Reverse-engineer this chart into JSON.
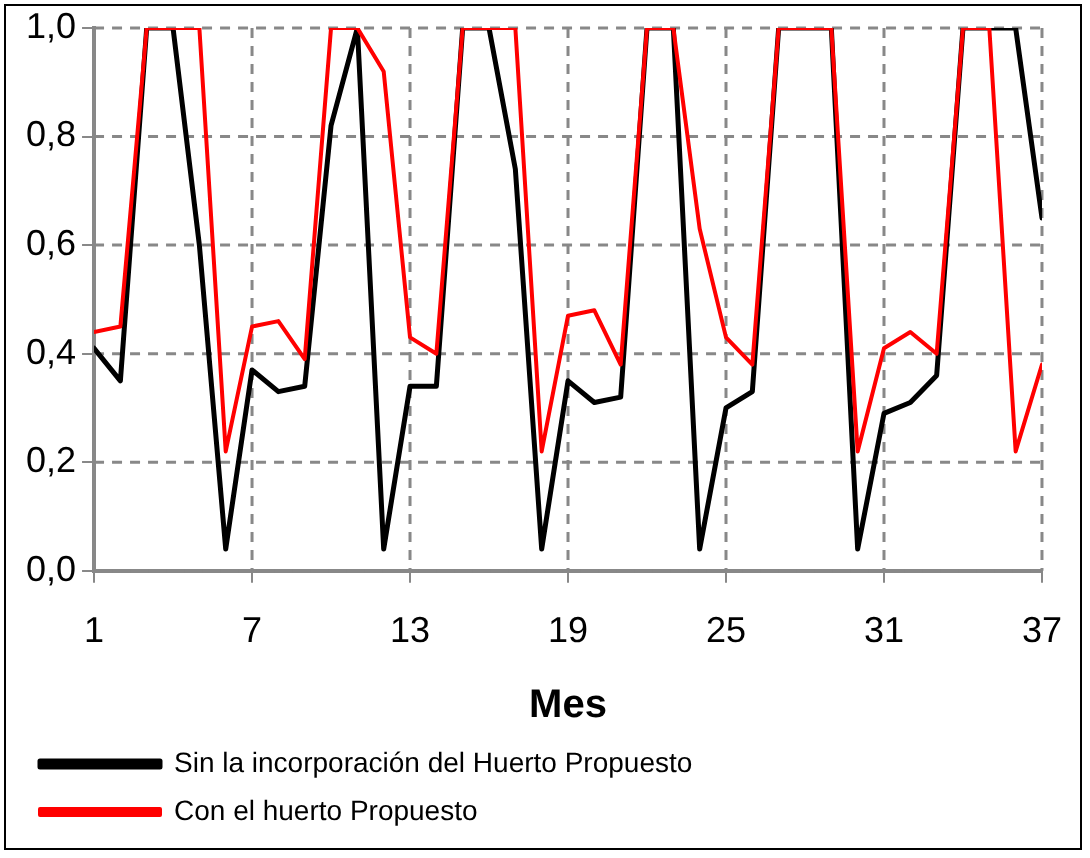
{
  "chart_data": {
    "type": "line",
    "xlabel": "Mes",
    "x": [
      1,
      2,
      3,
      4,
      5,
      6,
      7,
      8,
      9,
      10,
      11,
      12,
      13,
      14,
      15,
      16,
      17,
      18,
      19,
      20,
      21,
      22,
      23,
      24,
      25,
      26,
      27,
      28,
      29,
      30,
      31,
      32,
      33,
      34,
      35,
      36,
      37
    ],
    "series": [
      {
        "name": "Sin la incorporación del Huerto Propuesto",
        "color": "#000000",
        "values": [
          0.41,
          0.35,
          1.0,
          1.0,
          0.6,
          0.04,
          0.37,
          0.33,
          0.34,
          0.82,
          1.0,
          0.04,
          0.34,
          0.34,
          1.0,
          1.0,
          0.74,
          0.04,
          0.35,
          0.31,
          0.32,
          1.0,
          1.0,
          0.04,
          0.3,
          0.33,
          1.0,
          1.0,
          1.0,
          0.04,
          0.29,
          0.31,
          0.36,
          1.0,
          1.0,
          1.0,
          0.65
        ]
      },
      {
        "name": "Con el huerto Propuesto",
        "color": "#ff0000",
        "values": [
          0.44,
          0.45,
          1.0,
          1.0,
          1.0,
          0.22,
          0.45,
          0.46,
          0.39,
          1.0,
          1.0,
          0.92,
          0.43,
          0.4,
          1.0,
          1.0,
          1.0,
          0.22,
          0.47,
          0.48,
          0.38,
          1.0,
          1.0,
          0.63,
          0.43,
          0.38,
          1.0,
          1.0,
          1.0,
          0.22,
          0.41,
          0.44,
          0.4,
          1.0,
          1.0,
          0.22,
          0.38
        ]
      }
    ],
    "xlim": [
      1,
      37
    ],
    "xticks": [
      1,
      7,
      13,
      19,
      25,
      31,
      37
    ],
    "ylim": [
      0,
      1
    ],
    "yticks": [
      {
        "value": 0,
        "label": "0,0"
      },
      {
        "value": 0.2,
        "label": "0,2"
      },
      {
        "value": 0.4,
        "label": "0,4"
      },
      {
        "value": 0.6,
        "label": "0,6"
      },
      {
        "value": 0.8,
        "label": "0,8"
      },
      {
        "value": 1,
        "label": "1,0"
      }
    ],
    "grid": true,
    "legend": "bottom",
    "marker": "none",
    "line_style": "solid"
  }
}
